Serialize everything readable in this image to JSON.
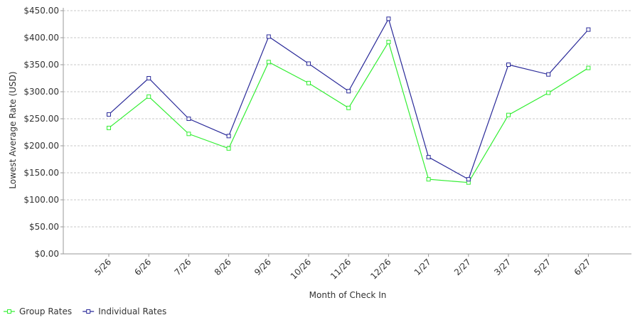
{
  "chart_data": {
    "type": "line",
    "xlabel": "Month of Check In",
    "ylabel": "Lowest Average Rate (USD)",
    "ylim": [
      0,
      450
    ],
    "yticks": [
      0,
      50,
      100,
      150,
      200,
      250,
      300,
      350,
      400,
      450
    ],
    "ytick_labels": [
      "$0.00",
      "$50.00",
      "$100.00",
      "$150.00",
      "$200.00",
      "$250.00",
      "$300.00",
      "$350.00",
      "$400.00",
      "$450.00"
    ],
    "categories": [
      "5/26",
      "6/26",
      "7/26",
      "8/26",
      "9/26",
      "10/26",
      "11/26",
      "12/26",
      "1/27",
      "2/27",
      "3/27",
      "5/27",
      "6/27"
    ],
    "grid": true,
    "legend_position": "bottom-left",
    "series": [
      {
        "name": "Group Rates",
        "color": "#33ee33",
        "values": [
          233,
          291,
          222,
          195,
          355,
          316,
          270,
          392,
          138,
          132,
          257,
          298,
          344
        ]
      },
      {
        "name": "Individual Rates",
        "color": "#2a2a99",
        "values": [
          258,
          325,
          250,
          218,
          402,
          352,
          301,
          435,
          179,
          138,
          350,
          332,
          415
        ]
      }
    ]
  }
}
